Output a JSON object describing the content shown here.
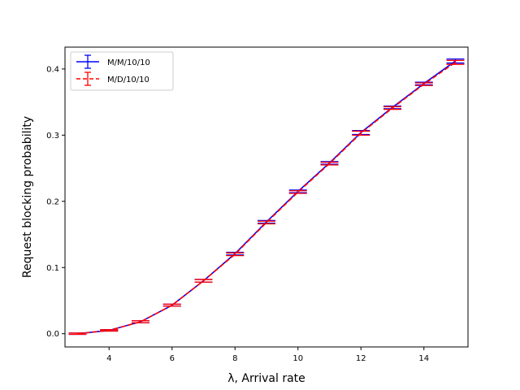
{
  "chart_data": {
    "type": "line",
    "title": "",
    "xlabel": "λ, Arrival rate",
    "ylabel": "Request blocking probability",
    "xlim": [
      2.6,
      15.4
    ],
    "ylim": [
      -0.02,
      0.433
    ],
    "x_ticks": [
      4,
      6,
      8,
      10,
      12,
      14
    ],
    "y_ticks": [
      0.0,
      0.1,
      0.2,
      0.3,
      0.4
    ],
    "y_tick_labels": [
      "0.0",
      "0.1",
      "0.2",
      "0.3",
      "0.4"
    ],
    "grid": false,
    "legend": "top-left",
    "x": [
      3,
      4,
      5,
      6,
      7,
      8,
      9,
      10,
      11,
      12,
      13,
      14,
      15
    ],
    "series": [
      {
        "name": "M/M/10/10",
        "color": "#0000ff",
        "style": "solid",
        "values": [
          0.0,
          0.005,
          0.018,
          0.043,
          0.08,
          0.121,
          0.169,
          0.215,
          0.258,
          0.304,
          0.342,
          0.378,
          0.412
        ],
        "errors": [
          0.001,
          0.001,
          0.0015,
          0.0015,
          0.002,
          0.002,
          0.002,
          0.002,
          0.002,
          0.003,
          0.002,
          0.002,
          0.003
        ]
      },
      {
        "name": "M/D/10/10",
        "color": "#ff0000",
        "style": "dashed",
        "values": [
          0.0,
          0.005,
          0.018,
          0.043,
          0.08,
          0.12,
          0.168,
          0.214,
          0.257,
          0.303,
          0.341,
          0.377,
          0.41
        ],
        "errors": [
          0.001,
          0.001,
          0.0015,
          0.0015,
          0.002,
          0.002,
          0.002,
          0.002,
          0.002,
          0.003,
          0.002,
          0.002,
          0.003
        ]
      }
    ]
  }
}
